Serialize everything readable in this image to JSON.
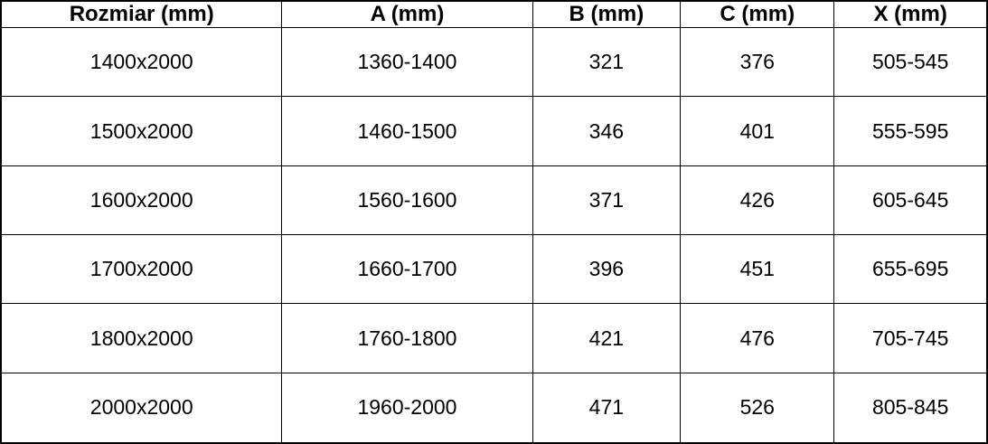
{
  "colors": {
    "border": "#000000",
    "text": "#000000",
    "background": "#ffffff"
  },
  "chart_data": {
    "type": "table",
    "title": "",
    "columns": [
      "Rozmiar (mm)",
      "A (mm)",
      "B (mm)",
      "C (mm)",
      "X (mm)"
    ],
    "rows": [
      [
        "1400x2000",
        "1360-1400",
        "321",
        "376",
        "505-545"
      ],
      [
        "1500x2000",
        "1460-1500",
        "346",
        "401",
        "555-595"
      ],
      [
        "1600x2000",
        "1560-1600",
        "371",
        "426",
        "605-645"
      ],
      [
        "1700x2000",
        "1660-1700",
        "396",
        "451",
        "655-695"
      ],
      [
        "1800x2000",
        "1760-1800",
        "421",
        "476",
        "705-745"
      ],
      [
        "2000x2000",
        "1960-2000",
        "471",
        "526",
        "805-845"
      ]
    ]
  }
}
